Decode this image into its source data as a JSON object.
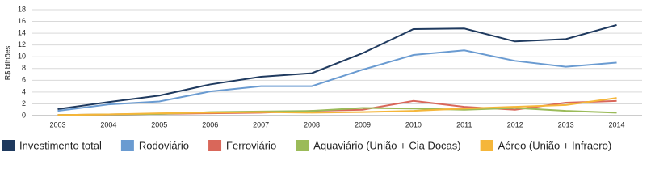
{
  "chart_data": {
    "type": "line",
    "y_label": "R$ bilhões",
    "categories": [
      "2003",
      "2004",
      "2005",
      "2006",
      "2007",
      "2008",
      "2009",
      "2010",
      "2011",
      "2012",
      "2013",
      "2014"
    ],
    "series": [
      {
        "name": "Investimento total",
        "color": "#1f3a5f",
        "values": [
          1.1,
          2.3,
          3.4,
          5.3,
          6.6,
          7.2,
          10.6,
          14.7,
          14.8,
          12.6,
          13.0,
          15.4
        ]
      },
      {
        "name": "Rodoviário",
        "color": "#6a9bd1",
        "values": [
          0.8,
          1.9,
          2.4,
          4.1,
          5.0,
          5.0,
          7.8,
          10.3,
          11.1,
          9.3,
          8.3,
          9.0
        ]
      },
      {
        "name": "Ferroviário",
        "color": "#d9675a",
        "values": [
          0.1,
          0.2,
          0.3,
          0.4,
          0.5,
          0.8,
          1.0,
          2.5,
          1.5,
          1.0,
          2.2,
          2.5
        ]
      },
      {
        "name": "Aquaviário (União + Cia Docas)",
        "color": "#9bbb59",
        "values": [
          0.1,
          0.2,
          0.3,
          0.6,
          0.7,
          0.8,
          1.3,
          1.2,
          1.0,
          1.3,
          0.8,
          0.5
        ]
      },
      {
        "name": "Aéreo (União + Infraero)",
        "color": "#f5b63a",
        "values": [
          0.1,
          0.2,
          0.4,
          0.5,
          0.6,
          0.5,
          0.6,
          0.8,
          1.2,
          1.5,
          1.8,
          3.0
        ]
      }
    ],
    "ylim": [
      0,
      18
    ],
    "yticks": [
      0,
      2,
      4,
      6,
      8,
      10,
      12,
      14,
      16,
      18
    ],
    "grid": true
  }
}
